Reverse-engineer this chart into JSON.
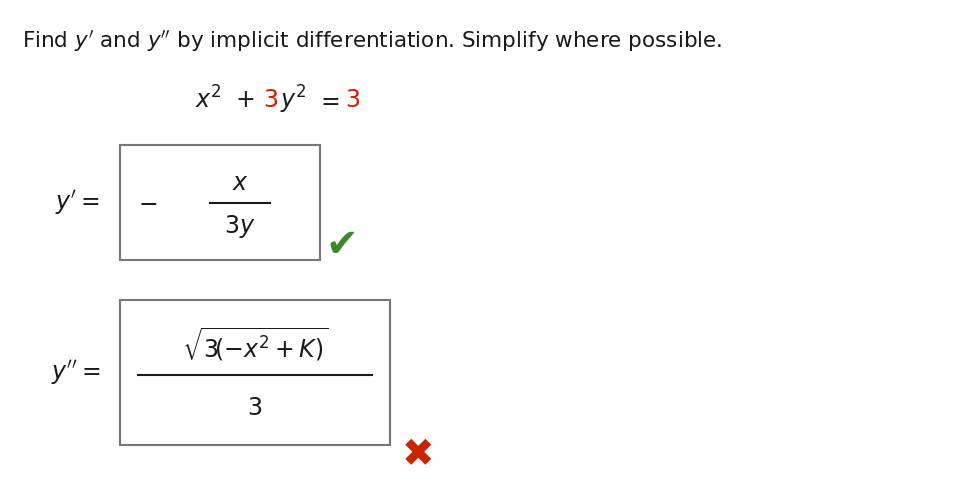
{
  "background_color": "#ffffff",
  "text_color": "#1a1a1a",
  "red_color": "#cc2200",
  "green_color": "#3a8a2a",
  "box_edge_color": "#777777",
  "title": "Find $y'$ and $y''$ by implicit differentiation. Simplify where possible.",
  "eq_black1": "$x^2 + $",
  "eq_red1": "$3$",
  "eq_black2": "$y^2 = $",
  "eq_red2": "$3$",
  "yprime_label": "$y' = $",
  "ydprime_label": "$y'' = $",
  "minus": "$-$",
  "numerator1": "$x$",
  "denominator1": "$3y$",
  "numerator2": "$\\sqrt{3(-x^2+K)}$",
  "denominator2": "$3$",
  "checkmark": "✔",
  "crossmark": "✖"
}
